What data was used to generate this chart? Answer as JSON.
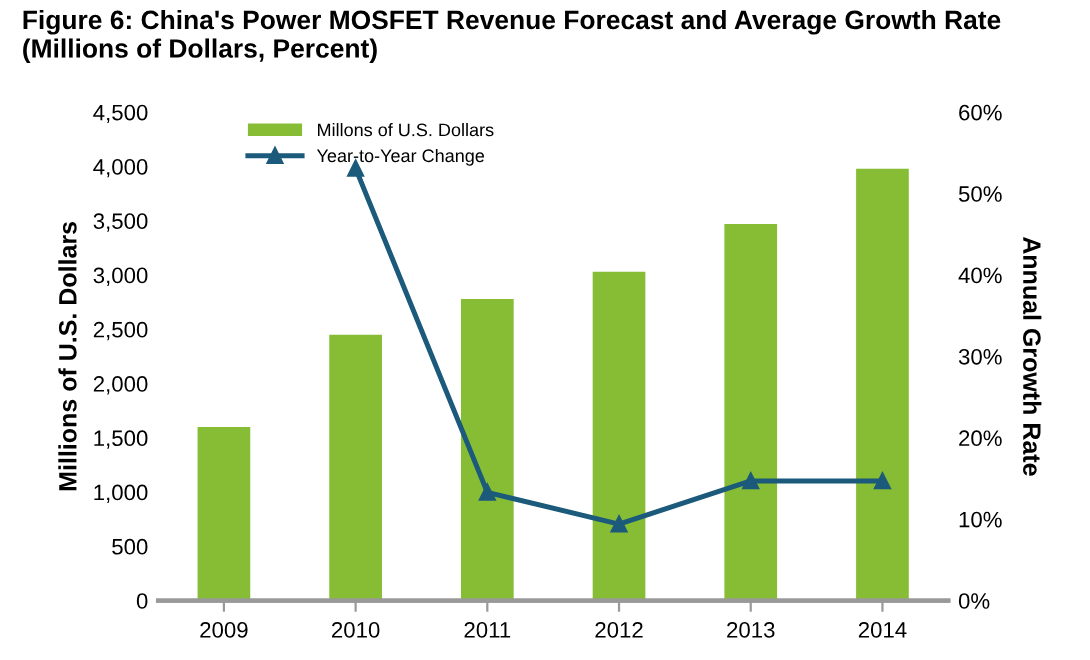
{
  "chart_data": {
    "type": "bar",
    "title": "Figure 6: China's Power MOSFET Revenue Forecast and Average Growth Rate\n(Millions of Dollars, Percent)",
    "categories": [
      "2009",
      "2010",
      "2011",
      "2012",
      "2013",
      "2014"
    ],
    "ylabel": "Millions of U.S. Dollars",
    "y2label": "Annual Growth Rate",
    "series": [
      {
        "name": "Millons of U.S. Dollars",
        "color": "#86bd35",
        "values": [
          1600,
          2450,
          2780,
          3030,
          3470,
          3980
        ]
      },
      {
        "name": "Year-to-Year Change",
        "type": "line",
        "axis": "y2",
        "color": "#1b5a7a",
        "marker": "triangle",
        "values": [
          null,
          53.1,
          13.3,
          9.4,
          14.7,
          14.7
        ]
      }
    ],
    "ylim": [
      0,
      4500
    ],
    "yticks": [
      {
        "value": 0,
        "label": "0"
      },
      {
        "value": 500,
        "label": "500"
      },
      {
        "value": 1000,
        "label": "1,000"
      },
      {
        "value": 1500,
        "label": "1,500"
      },
      {
        "value": 2000,
        "label": "2,000"
      },
      {
        "value": 2500,
        "label": "2,500"
      },
      {
        "value": 3000,
        "label": "3,000"
      },
      {
        "value": 3500,
        "label": "3,500"
      },
      {
        "value": 4000,
        "label": "4,000"
      },
      {
        "value": 4500,
        "label": "4,500"
      }
    ],
    "y2lim": [
      0,
      60
    ],
    "y2ticks": [
      {
        "value": 0,
        "label": "0%"
      },
      {
        "value": 10,
        "label": "10%"
      },
      {
        "value": 20,
        "label": "20%"
      },
      {
        "value": 30,
        "label": "30%"
      },
      {
        "value": 40,
        "label": "40%"
      },
      {
        "value": 50,
        "label": "50%"
      },
      {
        "value": 60,
        "label": "60%"
      }
    ],
    "legend": "top left",
    "grid": false
  }
}
